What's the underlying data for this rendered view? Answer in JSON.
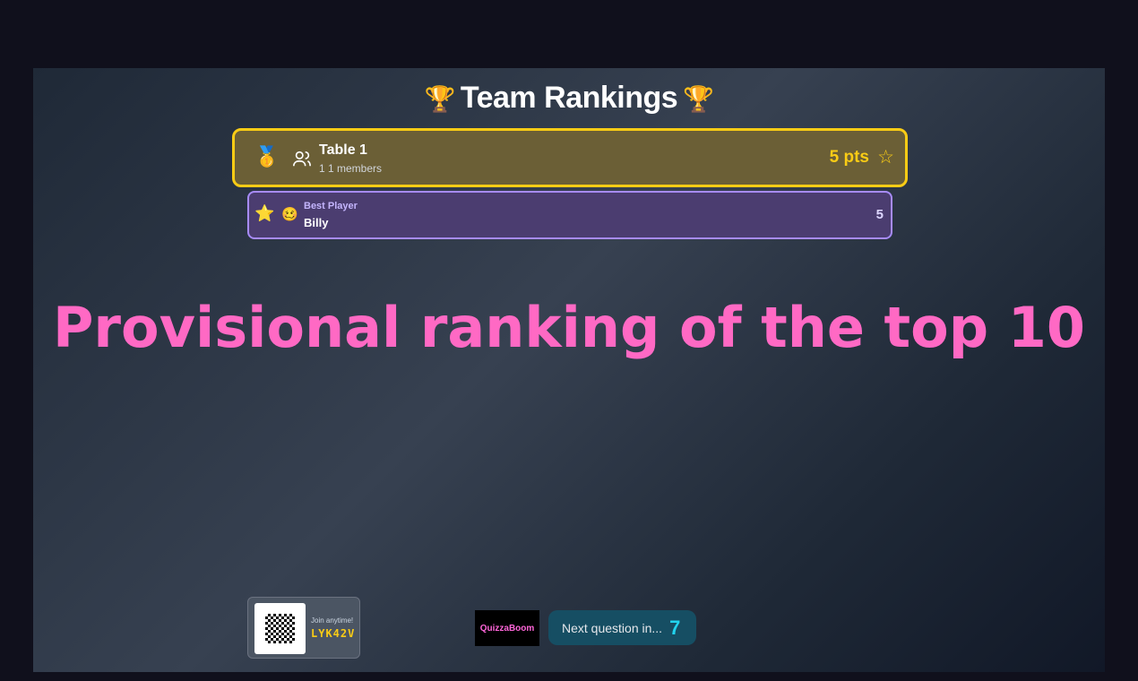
{
  "header": {
    "title": "Team Rankings",
    "trophy_icon": "trophy-icon"
  },
  "teams": [
    {
      "rank_icon": "gold-medal-icon",
      "name": "Table 1",
      "members": "1 1 members",
      "points": "5 pts"
    }
  ],
  "best_player": {
    "label": "Best Player",
    "name": "Billy",
    "score": "5"
  },
  "banner": "Provisional ranking of the top 10",
  "join": {
    "text": "Join anytime!",
    "code": "LYK42V"
  },
  "logo": "QuizzaBoom",
  "countdown": {
    "label": "Next question in...",
    "value": "7"
  },
  "colors": {
    "accent": "#facc15",
    "banner": "#ff69c4",
    "best_player_border": "#a78bfa",
    "countdown": "#22d3ee"
  }
}
